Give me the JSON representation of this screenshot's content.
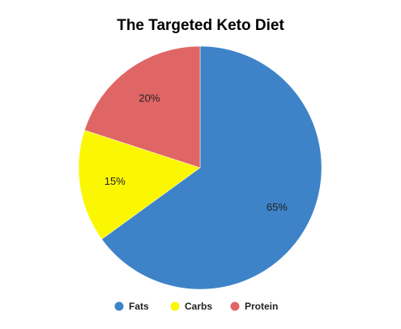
{
  "chart_data": {
    "type": "pie",
    "title": "The Targeted Keto Diet",
    "legend_position": "bottom",
    "slices": [
      {
        "name": "Fats",
        "value": 65,
        "label": "65%",
        "color": "#3e83c8"
      },
      {
        "name": "Carbs",
        "value": 15,
        "label": "15%",
        "color": "#fbf703"
      },
      {
        "name": "Protein",
        "value": 20,
        "label": "20%",
        "color": "#e06565"
      }
    ]
  }
}
